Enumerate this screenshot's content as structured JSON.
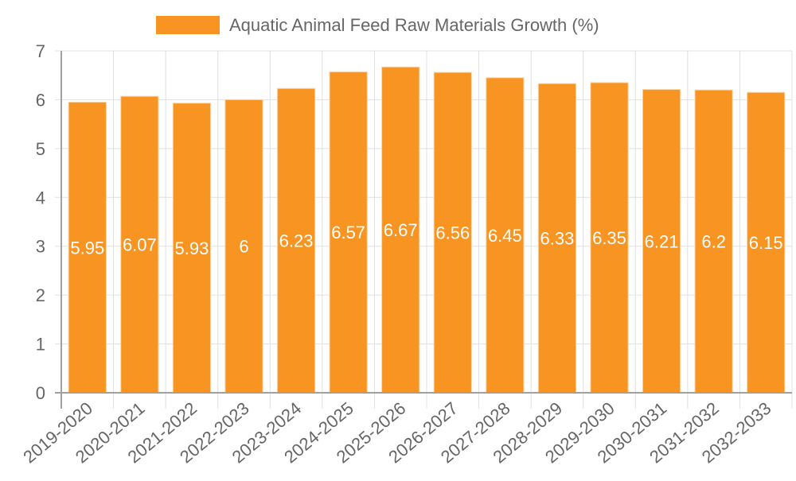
{
  "chart_data": {
    "type": "bar",
    "title": "",
    "xlabel": "",
    "ylabel": "",
    "categories": [
      "2019-2020",
      "2020-2021",
      "2021-2022",
      "2022-2023",
      "2023-2024",
      "2024-2025",
      "2025-2026",
      "2026-2027",
      "2027-2028",
      "2028-2029",
      "2029-2030",
      "2030-2031",
      "2031-2032",
      "2032-2033"
    ],
    "series": [
      {
        "name": "Aquatic Animal Feed Raw Materials Growth (%)",
        "color": "#f79422",
        "values": [
          5.95,
          6.07,
          5.93,
          6,
          6.23,
          6.57,
          6.67,
          6.56,
          6.45,
          6.33,
          6.35,
          6.21,
          6.2,
          6.15
        ],
        "labels": [
          "5.95",
          "6.07",
          "5.93",
          "6",
          "6.23",
          "6.57",
          "6.67",
          "6.56",
          "6.45",
          "6.33",
          "6.35",
          "6.21",
          "6.2",
          "6.15"
        ]
      }
    ],
    "ylim": [
      0,
      7
    ],
    "yticks": [
      "0",
      "1",
      "2",
      "3",
      "4",
      "5",
      "6",
      "7"
    ],
    "grid": true,
    "legend": {
      "position": "top-center"
    },
    "data_labels": "inside-bar-middle"
  }
}
